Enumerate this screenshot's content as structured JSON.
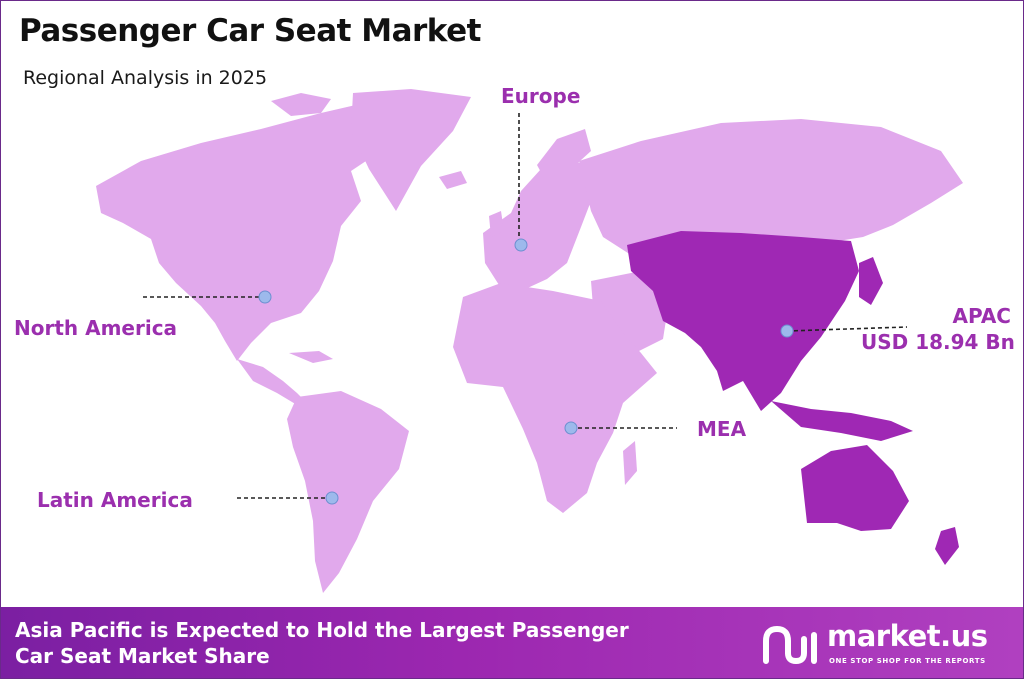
{
  "header": {
    "title": "Passenger Car Seat Market",
    "subtitle": "Regional Analysis in 2025"
  },
  "regions": {
    "europe": {
      "label": "Europe"
    },
    "north_america": {
      "label": "North America"
    },
    "apac": {
      "label": "APAC",
      "value": "USD 18.94 Bn"
    },
    "mea": {
      "label": "MEA"
    },
    "latin_america": {
      "label": "Latin America"
    }
  },
  "colors": {
    "land": "#e1a9ec",
    "apac_land": "#9f28b4",
    "label": "#9b2fae",
    "marker": "#9db9ec",
    "footer": "#8e24aa"
  },
  "footer": {
    "line1": "Asia Pacific is Expected to Hold the Largest Passenger",
    "line2": "Car Seat Market Share"
  },
  "brand": {
    "icon": "market-us-logo-icon",
    "name": "market.us",
    "tagline": "ONE STOP SHOP FOR THE REPORTS"
  }
}
